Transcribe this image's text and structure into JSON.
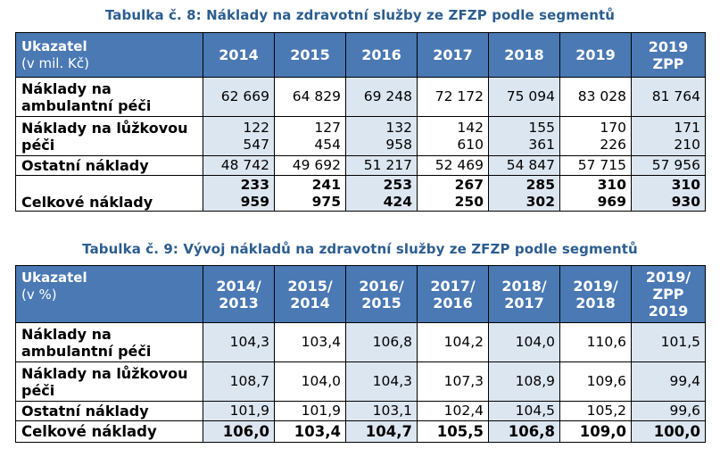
{
  "table8": {
    "caption": "Tabulka č. 8: Náklady na zdravotní služby ze ZFZP podle segmentů",
    "header_label": "Ukazatel",
    "header_unit": "(v mil. Kč)",
    "columns": [
      "2014",
      "2015",
      "2016",
      "2017",
      "2018",
      "2019",
      "2019\nZPP"
    ],
    "rows": [
      {
        "label": "Náklady na ambulantní péči",
        "values": [
          "62 669",
          "64 829",
          "69 248",
          "72 172",
          "75 094",
          "83 028",
          "81 764"
        ]
      },
      {
        "label": "Náklady na lůžkovou péči",
        "values": [
          "122\n547",
          "127\n454",
          "132\n958",
          "142\n610",
          "155\n361",
          "170\n226",
          "171\n210"
        ]
      },
      {
        "label": "Ostatní náklady",
        "values": [
          "48 742",
          "49 692",
          "51 217",
          "52 469",
          "54 847",
          "57 715",
          "57 956"
        ]
      },
      {
        "label": "Celkové náklady",
        "values": [
          "233\n959",
          "241\n975",
          "253\n424",
          "267\n250",
          "285\n302",
          "310\n969",
          "310\n930"
        ]
      }
    ]
  },
  "table9": {
    "caption": "Tabulka č. 9: Vývoj nákladů na zdravotní služby ze ZFZP podle segmentů",
    "header_label": "Ukazatel",
    "header_unit": "(v %)",
    "columns": [
      "2014/\n2013",
      "2015/\n2014",
      "2016/\n2015",
      "2017/\n2016",
      "2018/\n2017",
      "2019/\n2018",
      "2019/\nZPP\n2019"
    ],
    "rows": [
      {
        "label": "Náklady na ambulantní péči",
        "values": [
          "104,3",
          "103,4",
          "106,8",
          "104,2",
          "104,0",
          "110,6",
          "101,5"
        ]
      },
      {
        "label": "Náklady na lůžkovou péči",
        "values": [
          "108,7",
          "104,0",
          "104,3",
          "107,3",
          "108,9",
          "109,6",
          "99,4"
        ]
      },
      {
        "label": "Ostatní náklady",
        "values": [
          "101,9",
          "101,9",
          "103,1",
          "102,4",
          "104,5",
          "105,2",
          "99,6"
        ]
      },
      {
        "label": "Celkové náklady",
        "values": [
          "106,0",
          "103,4",
          "104,7",
          "105,5",
          "106,8",
          "109,0",
          "100,0"
        ]
      }
    ]
  },
  "colors": {
    "header_bg": "#4a79b4",
    "header_text": "#ffffff",
    "shade_bg": "#dce6f1",
    "caption_text": "#2c5d8f"
  }
}
